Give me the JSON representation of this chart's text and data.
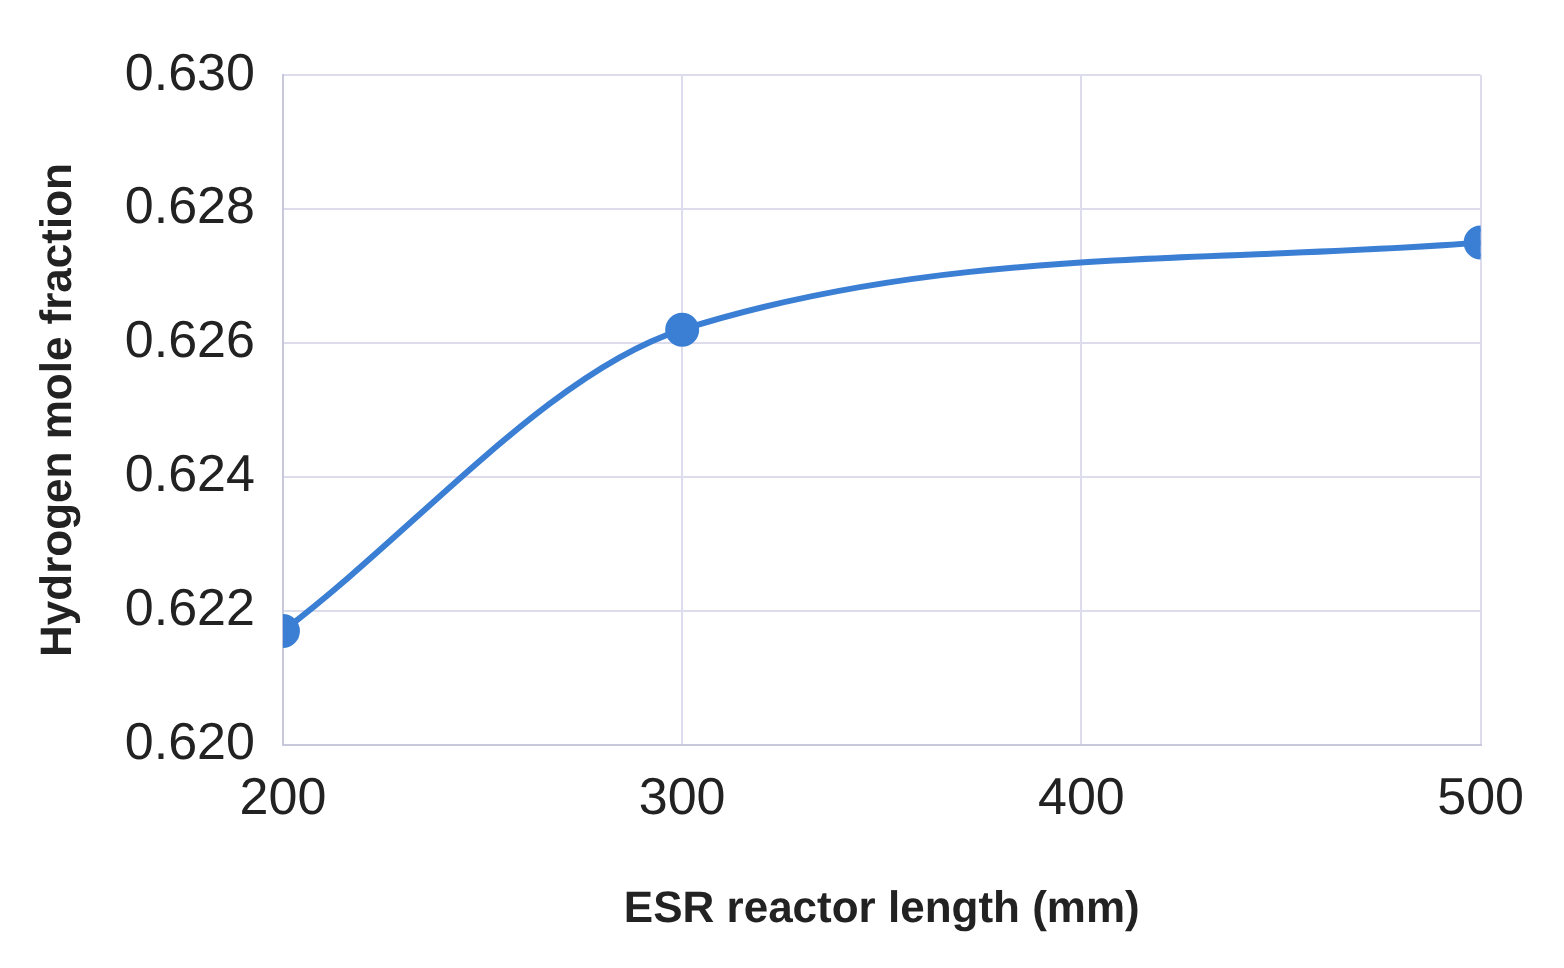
{
  "chart_data": {
    "type": "line",
    "xlabel": "ESR reactor length (mm)",
    "ylabel": "Hydrogen mole fraction",
    "x": [
      200,
      300,
      500
    ],
    "series": [
      {
        "color": "#3b7fd4",
        "values": [
          0.6217,
          0.6262,
          0.6275
        ]
      }
    ],
    "xlim": [
      200,
      500
    ],
    "xticks": [
      200,
      300,
      400,
      500
    ],
    "ylim": [
      0.62,
      0.63
    ],
    "yticks": [
      {
        "value": 0.62,
        "label": "0.620"
      },
      0.622,
      0.624,
      0.626,
      0.628,
      {
        "value": 0.63,
        "label": "0.630"
      }
    ],
    "grid": true,
    "legend": false,
    "marker": "circle",
    "line_style": "solid"
  }
}
